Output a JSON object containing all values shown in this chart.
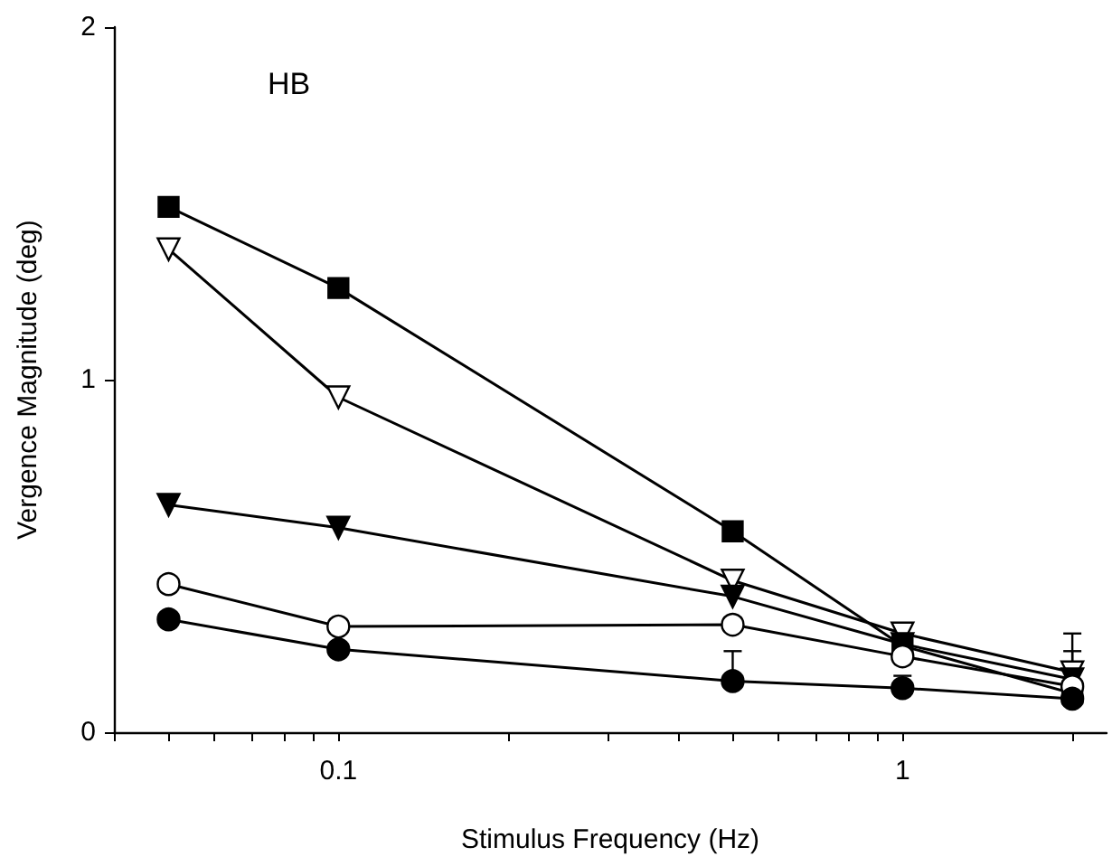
{
  "chart_data": {
    "type": "line",
    "xlabel": "Stimulus Frequency (Hz)",
    "ylabel": "Vergence Magnitude (deg)",
    "annotations": [
      "HB"
    ],
    "log": "x",
    "grid": false,
    "xlim": [
      0.04,
      2.3
    ],
    "xticks": [
      {
        "value": 0.04,
        "label": null
      },
      {
        "value": 0.05,
        "label": null
      },
      {
        "value": 0.06,
        "label": null
      },
      {
        "value": 0.07,
        "label": null
      },
      {
        "value": 0.08,
        "label": null
      },
      {
        "value": 0.09,
        "label": null
      },
      0.1,
      {
        "value": 0.2,
        "label": null
      },
      {
        "value": 0.3,
        "label": null
      },
      {
        "value": 0.4,
        "label": null
      },
      {
        "value": 0.5,
        "label": null
      },
      {
        "value": 0.6,
        "label": null
      },
      {
        "value": 0.7,
        "label": null
      },
      {
        "value": 0.8,
        "label": null
      },
      {
        "value": 0.9,
        "label": null
      },
      1,
      {
        "value": 2,
        "label": null
      }
    ],
    "ylim": [
      0,
      2
    ],
    "yticks": [
      0,
      1,
      2
    ],
    "x": [
      0.05,
      0.1,
      0.5,
      1,
      2
    ],
    "series": [
      {
        "color": "#000000",
        "marker": "square",
        "values": [
          1.49,
          1.26,
          0.57,
          0.245,
          0.11
        ]
      },
      {
        "color": "#000000",
        "marker": "triangle_down_open",
        "values": [
          1.37,
          0.95,
          0.43,
          0.28,
          0.17
        ],
        "errors": [
          null,
          null,
          null,
          null,
          [
            0.17,
            0.28
          ]
        ]
      },
      {
        "color": "#000000",
        "marker": "triangle_down",
        "values": [
          0.645,
          0.58,
          0.385,
          0.25,
          0.15
        ],
        "errors": [
          null,
          null,
          null,
          null,
          [
            0.15,
            0.23
          ]
        ]
      },
      {
        "color": "#000000",
        "marker": "circle_open",
        "values": [
          0.42,
          0.3,
          0.305,
          0.215,
          0.13
        ]
      },
      {
        "color": "#000000",
        "marker": "circle",
        "values": [
          0.32,
          0.235,
          0.145,
          0.125,
          0.095
        ],
        "errors": [
          null,
          null,
          [
            0.145,
            0.23
          ],
          [
            0.125,
            0.16
          ],
          null
        ]
      }
    ]
  }
}
